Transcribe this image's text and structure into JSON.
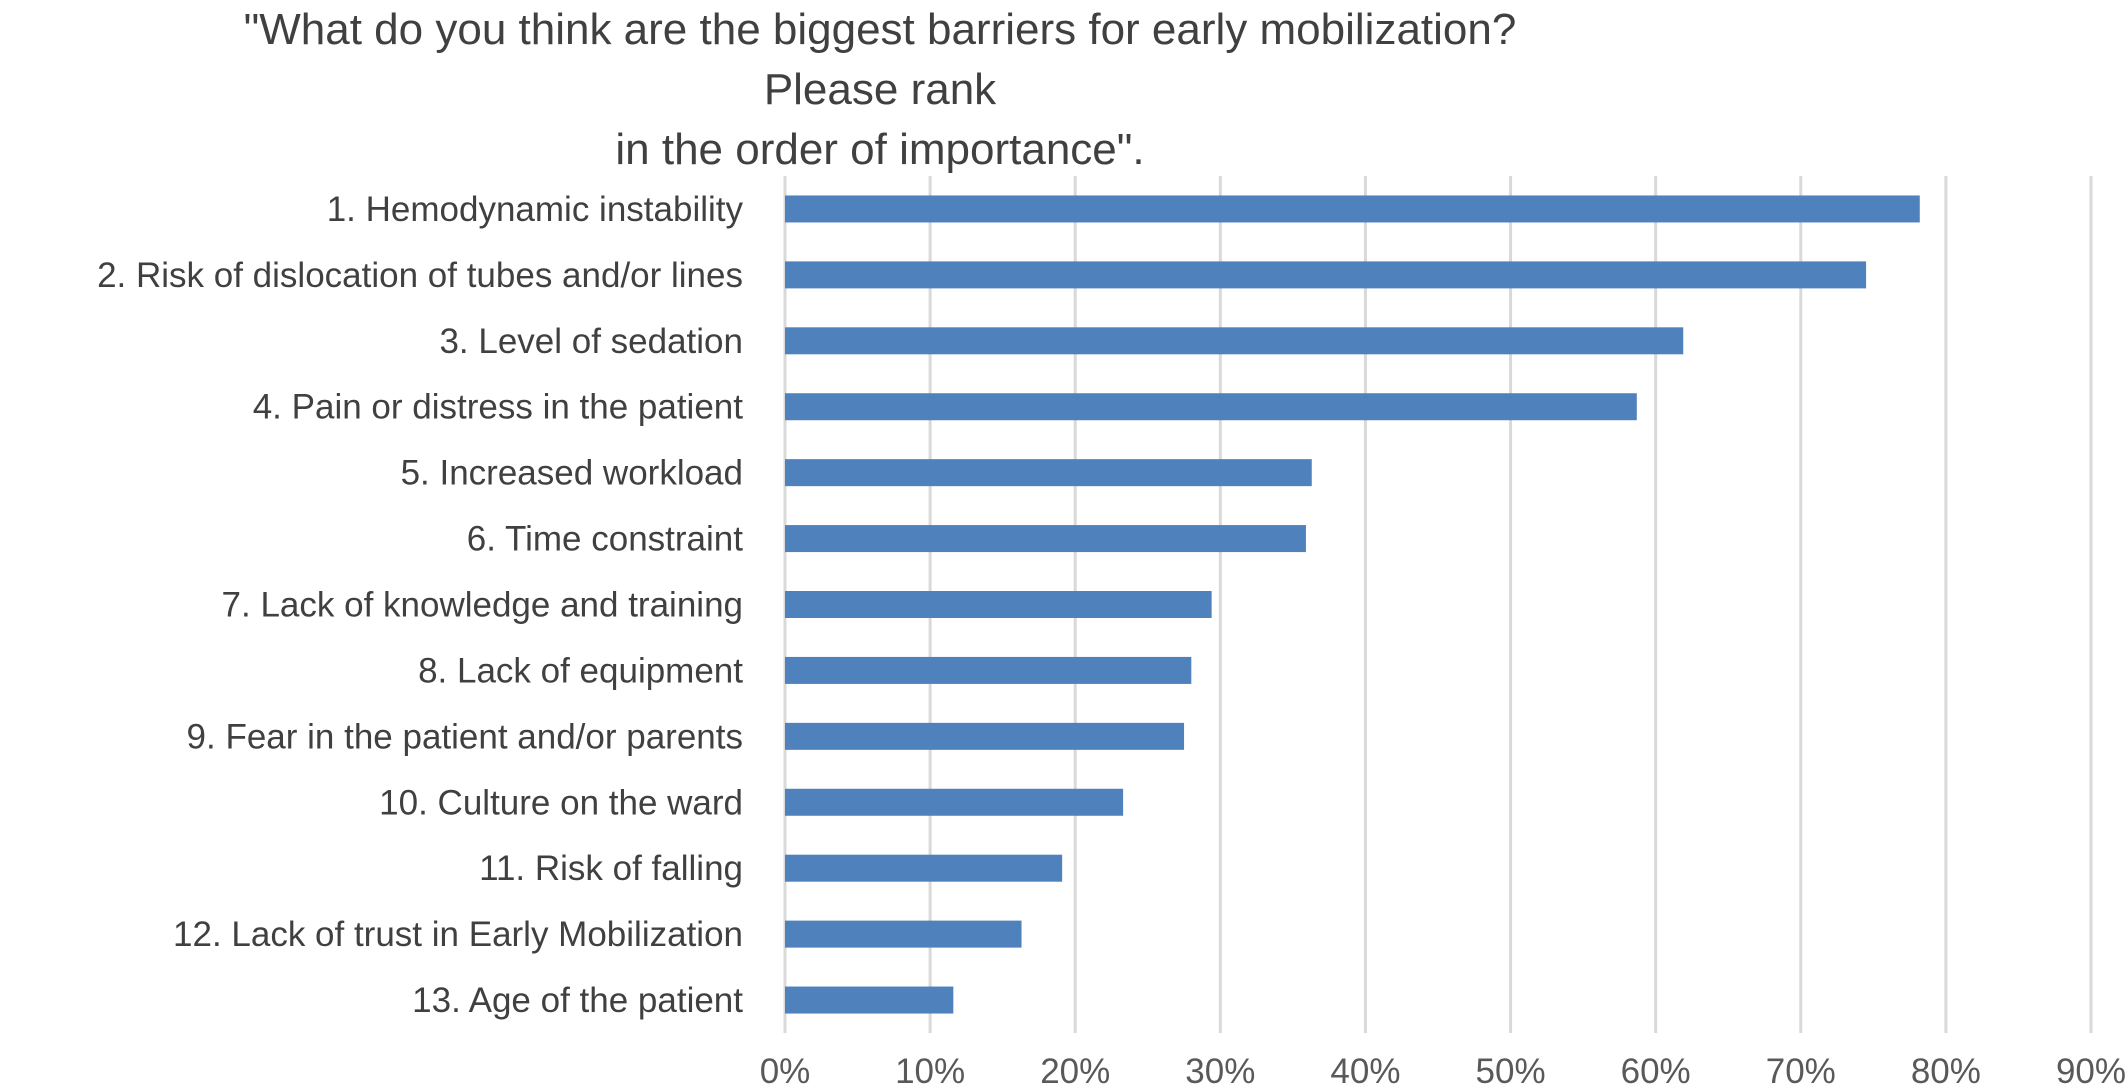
{
  "chart_data": {
    "type": "bar",
    "orientation": "horizontal",
    "title_lines": [
      "\"What do you think are the biggest barriers for early mobilization? Please rank",
      "in the order of importance\"."
    ],
    "categories": [
      "1. Hemodynamic instability",
      "2. Risk of dislocation of tubes and/or lines",
      "3. Level of sedation",
      "4. Pain or distress in the patient",
      "5. Increased workload",
      "6. Time constraint",
      "7. Lack of knowledge and training",
      "8. Lack of equipment",
      "9. Fear in the patient and/or parents",
      "10. Culture on the ward",
      "11. Risk of falling",
      "12. Lack of trust in Early Mobilization",
      "13. Age of the patient"
    ],
    "values": [
      78.2,
      74.5,
      61.9,
      58.7,
      36.3,
      35.9,
      29.4,
      28.0,
      27.5,
      23.3,
      19.1,
      16.3,
      11.6
    ],
    "xlim": [
      0,
      90
    ],
    "x_ticks": [
      0,
      10,
      20,
      30,
      40,
      50,
      60,
      70,
      80,
      90
    ],
    "x_tick_labels": [
      "0%",
      "10%",
      "20%",
      "30%",
      "40%",
      "50%",
      "60%",
      "70%",
      "80%",
      "90%"
    ],
    "xlabel": "",
    "ylabel": "",
    "grid": "vertical",
    "legend": "none",
    "bar_color": "#4F81BD",
    "grid_color": "#D9D9D9"
  }
}
